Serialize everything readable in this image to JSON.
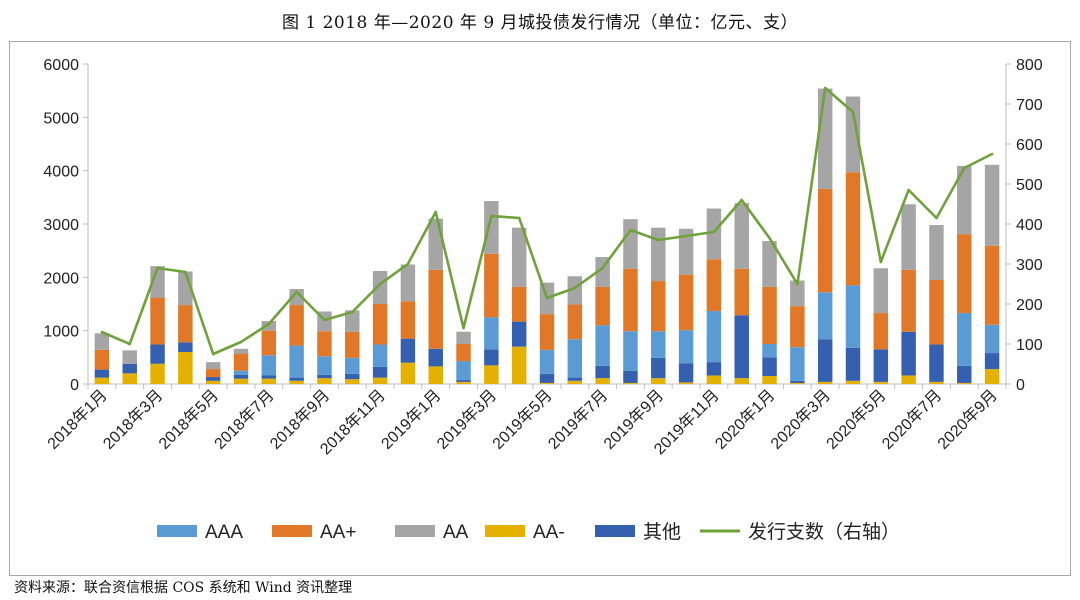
{
  "page": {
    "title": "图 1   2018 年—2020 年 9 月城投债发行情况（单位：亿元、支）",
    "source": "资料来源：联合资信根据 COS 系统和 Wind 资讯整理"
  },
  "chart_data": {
    "type": "bar",
    "stacked": true,
    "title": "图 1   2018 年—2020 年 9 月城投债发行情况（单位：亿元、支）",
    "categories": [
      "2018年1月",
      "2018年2月",
      "2018年3月",
      "2018年4月",
      "2018年5月",
      "2018年6月",
      "2018年7月",
      "2018年8月",
      "2018年9月",
      "2018年10月",
      "2018年11月",
      "2018年12月",
      "2019年1月",
      "2019年2月",
      "2019年3月",
      "2019年4月",
      "2019年5月",
      "2019年6月",
      "2019年7月",
      "2019年8月",
      "2019年9月",
      "2019年10月",
      "2019年11月",
      "2019年12月",
      "2020年1月",
      "2020年2月",
      "2020年3月",
      "2020年4月",
      "2020年5月",
      "2020年6月",
      "2020年7月",
      "2020年8月",
      "2020年9月"
    ],
    "x_tick_labels": [
      "2018年1月",
      "2018年3月",
      "2018年5月",
      "2018年7月",
      "2018年9月",
      "2018年11月",
      "2019年1月",
      "2019年3月",
      "2019年5月",
      "2019年7月",
      "2019年9月",
      "2019年11月",
      "2020年1月",
      "2020年3月",
      "2020年5月",
      "2020年7月",
      "2020年9月"
    ],
    "y_left": {
      "min": 0,
      "max": 6000,
      "ticks": [
        "0",
        "1000",
        "2000",
        "3000",
        "4000",
        "5000",
        "6000"
      ]
    },
    "y_right": {
      "min": 0,
      "max": 800,
      "ticks": [
        "0",
        "100",
        "200",
        "300",
        "400",
        "500",
        "600",
        "700",
        "800"
      ]
    },
    "series_bars": [
      {
        "name": "AA-",
        "color": "#e4b100",
        "values": [
          120,
          200,
          380,
          600,
          60,
          100,
          100,
          60,
          110,
          90,
          120,
          400,
          330,
          40,
          350,
          700,
          20,
          60,
          110,
          20,
          110,
          30,
          160,
          110,
          150,
          20,
          40,
          60,
          40,
          160,
          40,
          20,
          280
        ]
      },
      {
        "name": "其他",
        "color": "#3560b0",
        "values": [
          150,
          180,
          360,
          180,
          70,
          70,
          60,
          60,
          60,
          100,
          200,
          450,
          330,
          40,
          300,
          470,
          170,
          60,
          230,
          230,
          380,
          360,
          250,
          1180,
          350,
          40,
          800,
          620,
          610,
          820,
          700,
          320,
          300
        ]
      },
      {
        "name": "AAA",
        "color": "#5a9bd4",
        "values": [
          0,
          0,
          0,
          0,
          0,
          80,
          380,
          600,
          350,
          300,
          420,
          0,
          0,
          350,
          600,
          0,
          450,
          720,
          760,
          740,
          500,
          620,
          960,
          0,
          250,
          630,
          880,
          1170,
          0,
          0,
          0,
          990,
          530
        ]
      },
      {
        "name": "AA+",
        "color": "#e07828",
        "values": [
          370,
          0,
          880,
          700,
          150,
          320,
          460,
          760,
          470,
          490,
          760,
          700,
          1480,
          320,
          1190,
          650,
          670,
          650,
          720,
          1170,
          940,
          1040,
          970,
          870,
          1070,
          770,
          1940,
          2120,
          680,
          1160,
          1210,
          1480,
          1480
        ]
      },
      {
        "name": "AA",
        "color": "#a5a5a5",
        "values": [
          310,
          250,
          590,
          630,
          130,
          90,
          180,
          300,
          370,
          400,
          620,
          690,
          960,
          230,
          990,
          1110,
          590,
          530,
          560,
          930,
          1000,
          860,
          950,
          1230,
          860,
          480,
          1880,
          1420,
          840,
          1230,
          1030,
          1280,
          1520
        ]
      }
    ],
    "series_line": {
      "name": "发行支数（右轴）",
      "color": "#6fa23a",
      "axis": "right",
      "values": [
        130,
        100,
        290,
        280,
        75,
        105,
        150,
        230,
        160,
        180,
        250,
        300,
        430,
        140,
        420,
        415,
        215,
        240,
        290,
        385,
        360,
        370,
        380,
        460,
        365,
        250,
        740,
        680,
        305,
        485,
        415,
        540,
        575
      ]
    },
    "legend": [
      "AAA",
      "AA+",
      "AA",
      "AA-",
      "其他",
      "发行支数（右轴）"
    ],
    "legend_position": "bottom"
  }
}
